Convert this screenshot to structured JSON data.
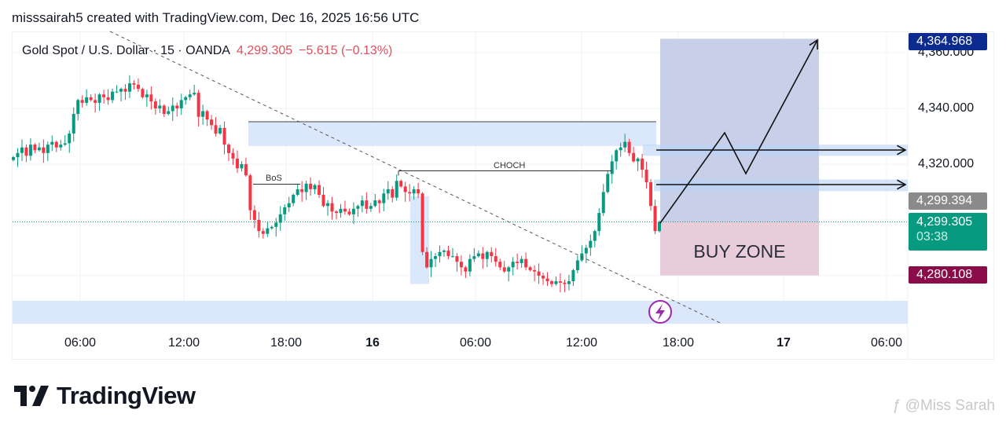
{
  "header": {
    "credit": "misssairah5 created with TradingView.com, Dec 16, 2025 16:56 UTC"
  },
  "legend": {
    "symbol": "Gold Spot / U.S. Dollar · 15 · OANDA",
    "price": "4,299.305",
    "change": "−5.615 (−0.13%)"
  },
  "price_axis": {
    "ticks": [
      "4,360.000",
      "4,340.000",
      "4,320.000"
    ],
    "badges": {
      "target": "4,364.968",
      "prev_close": "4,299.394",
      "last_price": "4,299.305",
      "countdown": "03:38",
      "stop": "4,280.108"
    }
  },
  "time_axis": {
    "ticks": [
      "06:00",
      "12:00",
      "18:00",
      "16",
      "06:00",
      "12:00",
      "18:00",
      "17",
      "06:00"
    ]
  },
  "annotations": {
    "bos": "BoS",
    "choch": "CHOCH",
    "buy_zone": "BUY ZONE"
  },
  "footer": {
    "logo_text": "TradingView",
    "watermark": "@Miss Sarah"
  },
  "colors": {
    "up": "#089981",
    "down": "#f23645",
    "zone": "#dbe8fb",
    "target_zone": "#c8cfe8",
    "buy_zone": "#e8ccd9",
    "target_badge": "#0d2a8f",
    "stop_badge": "#8a0d4a",
    "last_badge": "#089981",
    "prev_badge": "#8a8a8a",
    "alert_icon": "#9c27b0"
  },
  "icons": {
    "alert": "lightning-icon",
    "logo": "tradingview-logo"
  },
  "chart_data": {
    "type": "candlestick",
    "symbol": "XAUUSD",
    "interval": "15",
    "first_bar": "Dec 15 02:00",
    "ylim": [
      4262.8,
      4367.6
    ],
    "grid": true,
    "scale": "linear",
    "close": [
      4322.5,
      4324,
      4326,
      4323,
      4327,
      4325,
      4326,
      4324,
      4327,
      4328,
      4326,
      4327,
      4327.5,
      4331,
      4338,
      4343,
      4342,
      4344,
      4343,
      4342,
      4345,
      4344,
      4343,
      4346,
      4346,
      4347,
      4346,
      4349,
      4348.5,
      4347,
      4344,
      4345,
      4342.5,
      4340,
      4341,
      4338,
      4339,
      4341,
      4340,
      4343,
      4344,
      4345,
      4345.6,
      4337,
      4339,
      4336,
      4334,
      4331,
      4333,
      4327,
      4324,
      4322,
      4318.5,
      4320,
      4316,
      4303.5,
      4300,
      4296,
      4295,
      4297,
      4297.5,
      4299,
      4302,
      4304.5,
      4306,
      4309,
      4311,
      4310,
      4313,
      4311,
      4312.5,
      4309,
      4305,
      4306,
      4303,
      4302.5,
      4304,
      4303,
      4302,
      4304,
      4305,
      4307,
      4304,
      4305,
      4307,
      4306,
      4309.5,
      4311,
      4308,
      4314,
      4312,
      4310,
      4309.5,
      4311,
      4309.5,
      4288.5,
      4283,
      4286,
      4287,
      4288.5,
      4289,
      4287,
      4287,
      4285,
      4283,
      4281.5,
      4286,
      4287,
      4288,
      4286,
      4288.5,
      4287,
      4285,
      4283,
      4281.5,
      4283,
      4285,
      4284.5,
      4286,
      4283,
      4282,
      4281.5,
      4280,
      4279,
      4278,
      4277,
      4278,
      4277.5,
      4277,
      4278,
      4282,
      4285.5,
      4288,
      4290,
      4292.5,
      4296,
      4302.5,
      4310,
      4316.5,
      4321,
      4325,
      4326,
      4328,
      4324,
      4321,
      4322,
      4318,
      4313.5,
      4305,
      4296,
      4299.3
    ],
    "levels": {
      "target": 4364.968,
      "entry": 4299.305,
      "stop": 4280.108,
      "supply_zone": [
        4326.5,
        4335.2
      ],
      "bos": 4312.8,
      "choch": 4317.6,
      "resistance_1": [
        4323.0,
        4327.0
      ],
      "resistance_2": [
        4310.3,
        4314.5
      ],
      "demand_zone": [
        4262.8,
        4271.0
      ]
    }
  }
}
